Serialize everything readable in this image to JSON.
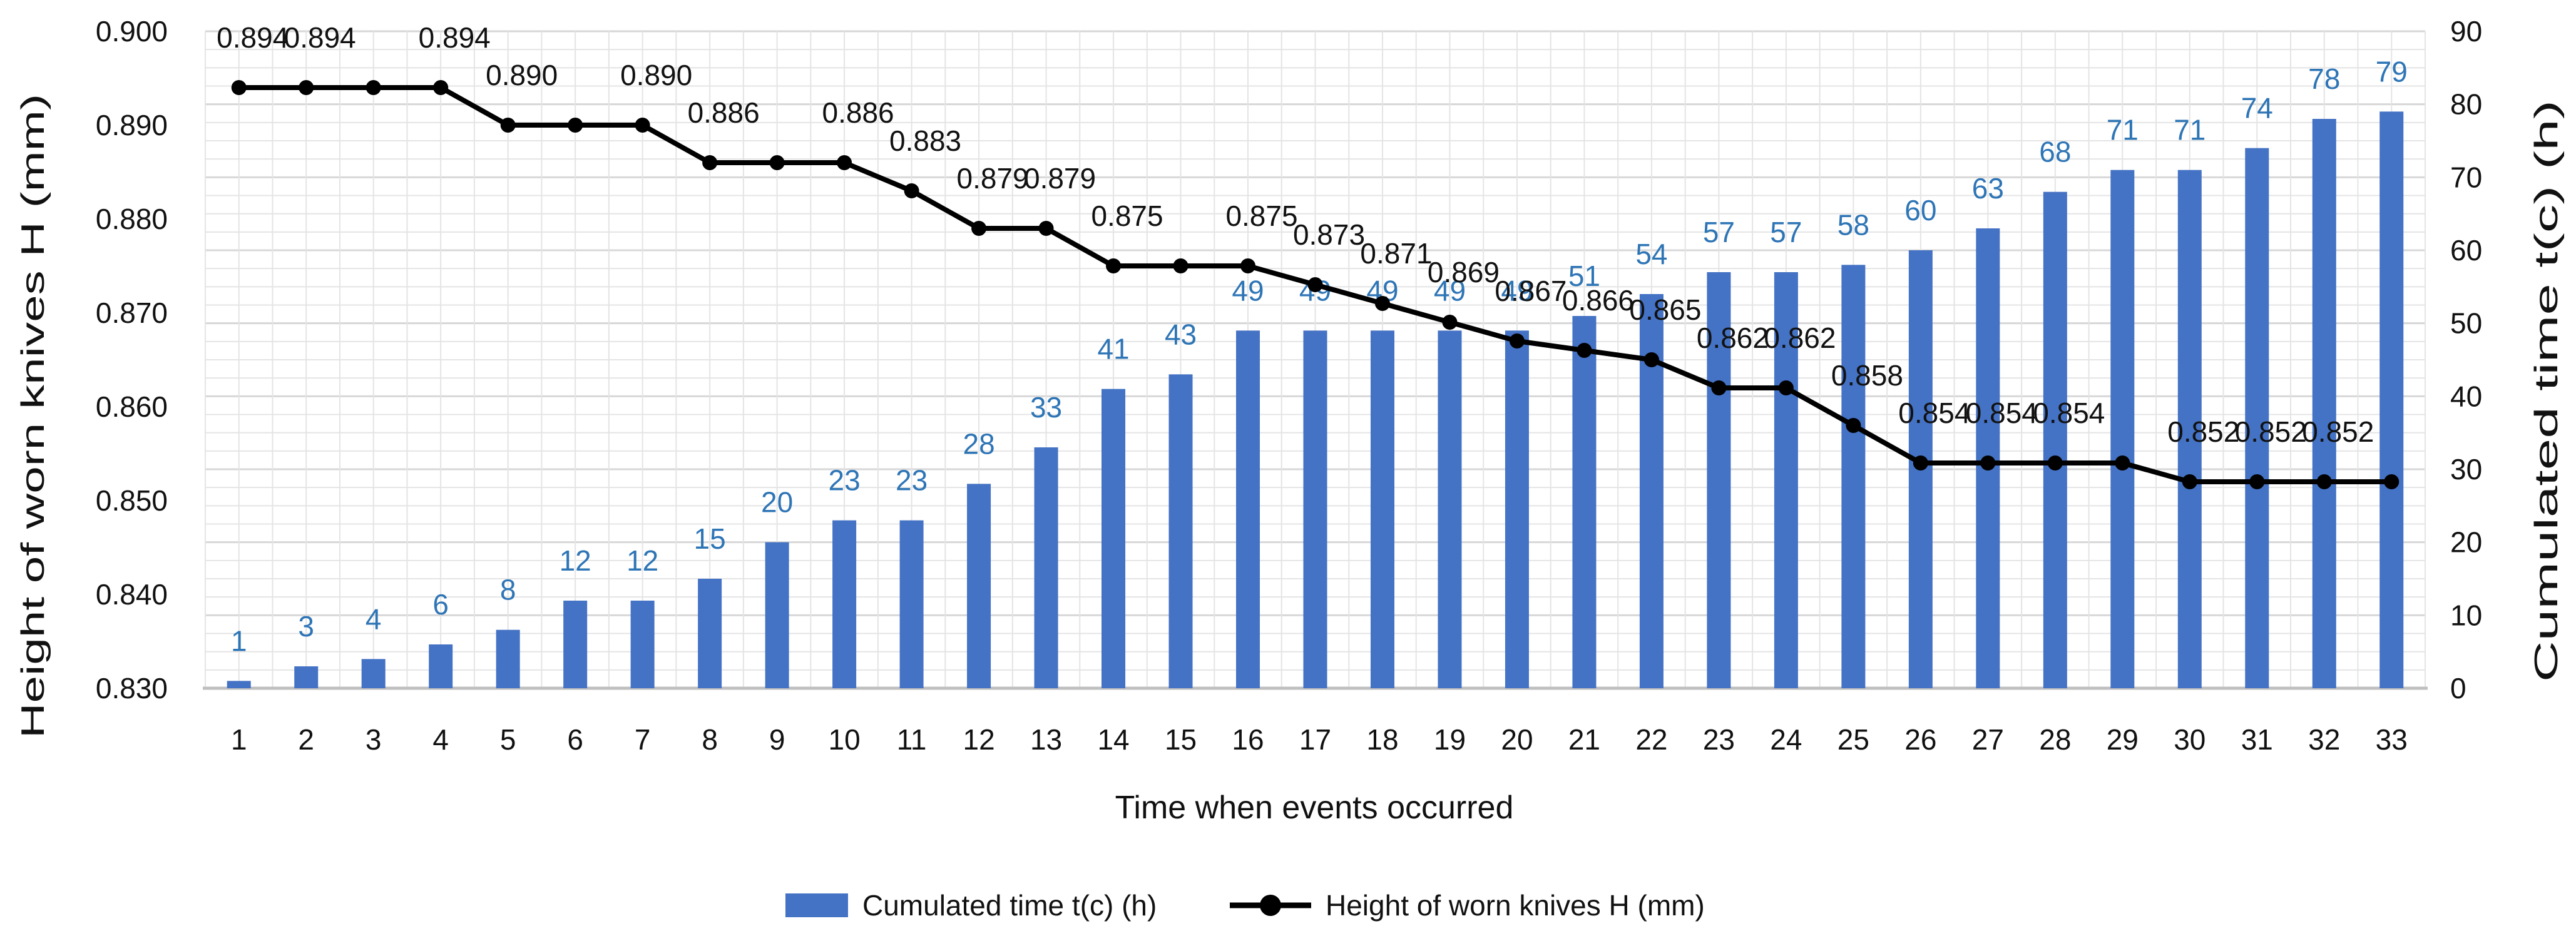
{
  "chart_data": {
    "type": "combo-bar-line",
    "x_axis": {
      "title": "Time when events occurred",
      "categories": [
        "1",
        "2",
        "3",
        "4",
        "5",
        "6",
        "7",
        "8",
        "9",
        "10",
        "11",
        "12",
        "13",
        "14",
        "15",
        "16",
        "17",
        "18",
        "19",
        "20",
        "21",
        "22",
        "23",
        "24",
        "25",
        "26",
        "27",
        "28",
        "29",
        "30",
        "31",
        "32",
        "33"
      ]
    },
    "left_axis": {
      "title": "Height of worn knives H (mm)",
      "min": 0.83,
      "max": 0.9,
      "tick_step": 0.01,
      "ticks": [
        "0.900",
        "0.890",
        "0.880",
        "0.870",
        "0.860",
        "0.850",
        "0.840",
        "0.830"
      ]
    },
    "right_axis": {
      "title": "Cumulated time t(c) (h)",
      "min": 0,
      "max": 90,
      "tick_step": 10,
      "ticks": [
        "90",
        "80",
        "70",
        "60",
        "50",
        "40",
        "30",
        "20",
        "10",
        "0"
      ]
    },
    "grid": {
      "h_minor_rows": 36,
      "v_minor_per_category": 2,
      "minor_color": "#e4e4e4",
      "major_color": "#d7d7d7",
      "axis_line_color": "#bfbfbf"
    },
    "series": [
      {
        "name": "Cumulated time t(c) (h)",
        "type": "bar",
        "axis": "right",
        "color": "#4472C4",
        "label_color": "#2E75B6",
        "values": [
          1,
          3,
          4,
          6,
          8,
          12,
          12,
          15,
          20,
          23,
          23,
          28,
          33,
          41,
          43,
          49,
          49,
          49,
          49,
          49,
          51,
          54,
          57,
          57,
          58,
          60,
          63,
          68,
          71,
          71,
          74,
          78,
          79
        ]
      },
      {
        "name": "Height of worn knives H (mm)",
        "type": "line",
        "axis": "left",
        "color": "#000000",
        "values": [
          0.894,
          0.894,
          0.894,
          0.894,
          0.89,
          0.89,
          0.89,
          0.886,
          0.886,
          0.886,
          0.883,
          0.879,
          0.879,
          0.875,
          0.875,
          0.875,
          0.873,
          0.871,
          0.869,
          0.867,
          0.866,
          0.865,
          0.862,
          0.862,
          0.858,
          0.854,
          0.854,
          0.854,
          0.854,
          0.852,
          0.852,
          0.852,
          0.852
        ],
        "point_labels": [
          {
            "i": 0,
            "text": "0.894"
          },
          {
            "i": 1,
            "text": "0.894"
          },
          {
            "i": 3,
            "text": "0.894"
          },
          {
            "i": 4,
            "text": "0.890"
          },
          {
            "i": 6,
            "text": "0.890"
          },
          {
            "i": 7,
            "text": "0.886"
          },
          {
            "i": 9,
            "text": "0.886"
          },
          {
            "i": 10,
            "text": "0.883"
          },
          {
            "i": 11,
            "text": "0.879"
          },
          {
            "i": 12,
            "text": "0.879"
          },
          {
            "i": 13,
            "text": "0.875"
          },
          {
            "i": 15,
            "text": "0.875"
          },
          {
            "i": 16,
            "text": "0.873"
          },
          {
            "i": 17,
            "text": "0.871"
          },
          {
            "i": 18,
            "text": "0.869"
          },
          {
            "i": 19,
            "text": "0.867"
          },
          {
            "i": 20,
            "text": "0.866"
          },
          {
            "i": 21,
            "text": "0.865"
          },
          {
            "i": 22,
            "text": "0.862"
          },
          {
            "i": 23,
            "text": "0.862"
          },
          {
            "i": 24,
            "text": "0.858"
          },
          {
            "i": 25,
            "text": "0.854"
          },
          {
            "i": 26,
            "text": "0.854"
          },
          {
            "i": 27,
            "text": "0.854"
          },
          {
            "i": 29,
            "text": "0.852"
          },
          {
            "i": 30,
            "text": "0.852"
          },
          {
            "i": 31,
            "text": "0.852"
          }
        ]
      }
    ],
    "legend": {
      "items": [
        {
          "label": "Cumulated time t(c) (h)",
          "marker": "bar-swatch",
          "color": "#4472C4"
        },
        {
          "label": "Height of worn knives H (mm)",
          "marker": "line-dot",
          "color": "#000000"
        }
      ]
    }
  }
}
